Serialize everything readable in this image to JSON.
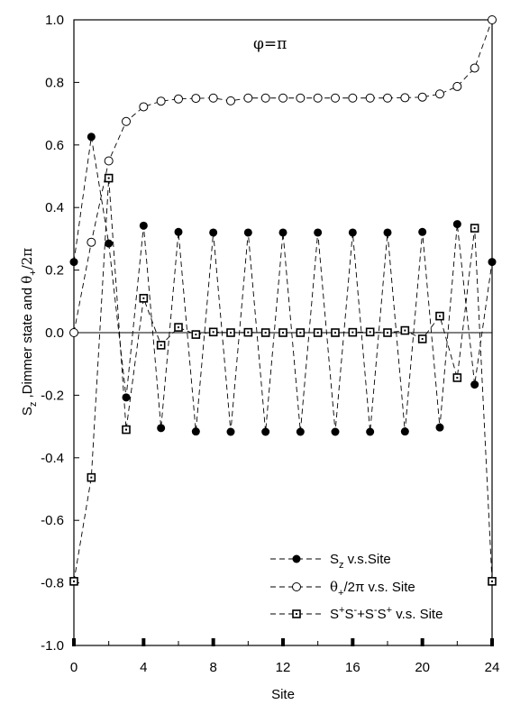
{
  "chart_data": {
    "type": "line",
    "annotation": "φ=π",
    "xlabel": "Site",
    "ylabel": {
      "part1": "S",
      "part1_sub": "z",
      "part2": " ,Dimmer state and ",
      "part3": "θ",
      "part3_sub": "+",
      "part4": "/2π"
    },
    "xlim": [
      0,
      24
    ],
    "ylim": [
      -1.0,
      1.0
    ],
    "xticks": [
      0,
      4,
      8,
      12,
      16,
      20,
      24
    ],
    "xtick_labels": [
      "0",
      "4",
      "8",
      "12",
      "16",
      "20",
      "24"
    ],
    "yticks": [
      -1.0,
      -0.8,
      -0.6,
      -0.4,
      -0.2,
      0.0,
      0.2,
      0.4,
      0.6,
      0.8,
      1.0
    ],
    "ytick_labels": [
      "-1.0",
      "-0.8",
      "-0.6",
      "-0.4",
      "-0.2",
      "0.0",
      "0.2",
      "0.4",
      "0.6",
      "0.8",
      "1.0"
    ],
    "zero_line": true,
    "grid": false,
    "legend_position": "bottom-right",
    "x": [
      0,
      1,
      2,
      3,
      4,
      5,
      6,
      7,
      8,
      9,
      10,
      11,
      12,
      13,
      14,
      15,
      16,
      17,
      18,
      19,
      20,
      21,
      22,
      23,
      24
    ],
    "series": [
      {
        "legend": {
          "main": "S",
          "sub": "z",
          "rest": " v.s.Site"
        },
        "marker": "filled-circle",
        "values": [
          0.226,
          0.626,
          0.285,
          -0.207,
          0.342,
          -0.305,
          0.322,
          -0.316,
          0.32,
          -0.317,
          0.32,
          -0.317,
          0.32,
          -0.317,
          0.32,
          -0.317,
          0.32,
          -0.317,
          0.32,
          -0.316,
          0.322,
          -0.303,
          0.347,
          -0.166,
          0.226
        ]
      },
      {
        "legend": {
          "main": "θ",
          "sub": "+",
          "rest": "/2π  v.s. Site"
        },
        "marker": "open-circle",
        "values": [
          0.0,
          0.289,
          0.549,
          0.675,
          0.722,
          0.74,
          0.747,
          0.749,
          0.75,
          0.741,
          0.75,
          0.75,
          0.75,
          0.75,
          0.75,
          0.75,
          0.75,
          0.75,
          0.75,
          0.751,
          0.753,
          0.763,
          0.787,
          0.846,
          1.0
        ]
      },
      {
        "legend": {
          "main": "S",
          "sup1": "+",
          "mid1": "S",
          "sup2": "-",
          "mid2": "+S",
          "sup3": "-",
          "mid3": "S",
          "sup4": "+",
          "rest": " v.s. Site"
        },
        "marker": "open-square-dot",
        "values": [
          -0.795,
          -0.463,
          0.494,
          -0.31,
          0.11,
          -0.04,
          0.017,
          -0.006,
          0.002,
          0.0,
          0.001,
          0.0,
          0.0,
          0.0,
          0.0,
          0.0,
          0.001,
          0.002,
          0.0,
          0.007,
          -0.02,
          0.053,
          -0.144,
          0.334,
          -0.795
        ]
      }
    ]
  }
}
